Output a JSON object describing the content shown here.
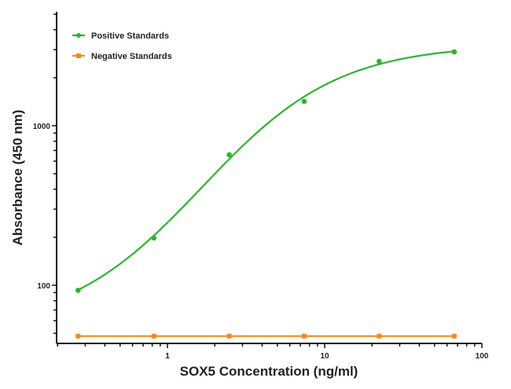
{
  "chart_data": {
    "type": "line",
    "title": "",
    "xlabel": "SOX5 Concentration (ng/ml)",
    "ylabel": "Absorbance (450 nm)",
    "xscale": "log",
    "yscale": "log",
    "xlim": [
      0.2,
      100
    ],
    "ylim": [
      44,
      5200
    ],
    "x_ticks": [
      1,
      10,
      100
    ],
    "x_tick_labels": [
      "1",
      "10",
      "100"
    ],
    "y_ticks": [
      100,
      1000
    ],
    "y_tick_labels": [
      "100",
      "1000"
    ],
    "grid": false,
    "legend_position": "upper-left",
    "x": [
      0.27,
      0.82,
      2.47,
      7.41,
      22.2,
      66.7
    ],
    "series": [
      {
        "name": "Positive Standards",
        "color": "#2db52d",
        "marker": "circle",
        "line": "fitted-curve",
        "values": [
          93,
          198,
          658,
          1420,
          2535,
          2905
        ]
      },
      {
        "name": "Negative Standards",
        "color": "#f08a24",
        "marker": "square",
        "line": "straight",
        "values": [
          48,
          48,
          48,
          48,
          48,
          48
        ]
      }
    ]
  }
}
